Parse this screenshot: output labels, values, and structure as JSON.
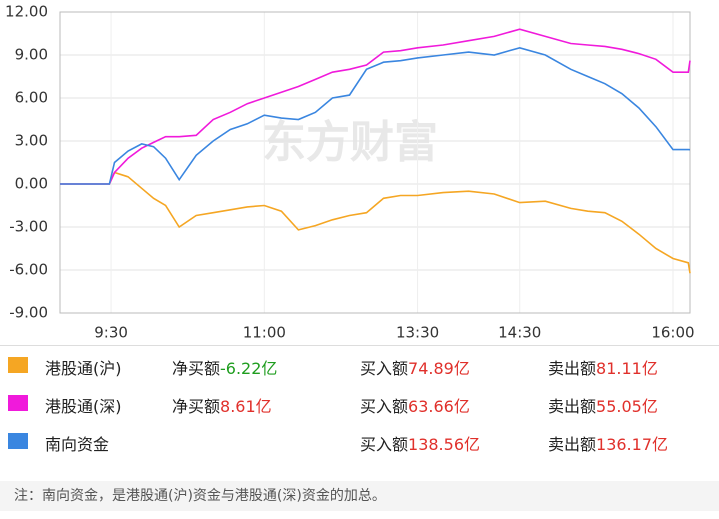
{
  "chart_data": {
    "type": "line",
    "watermark": "东方财富",
    "x": [
      "9:00",
      "9:29",
      "9:32",
      "9:40",
      "9:48",
      "9:55",
      "10:02",
      "10:10",
      "10:20",
      "10:30",
      "10:40",
      "10:50",
      "11:00",
      "11:10",
      "11:20",
      "11:30",
      "11:40",
      "11:50",
      "12:00",
      "13:10",
      "13:20",
      "13:30",
      "13:45",
      "14:00",
      "14:15",
      "14:30",
      "14:45",
      "15:00",
      "15:10",
      "15:20",
      "15:30",
      "15:40",
      "15:50",
      "16:00",
      "16:09",
      "16:10"
    ],
    "xlim": [
      "9:00",
      "16:10"
    ],
    "xticks": [
      "9:30",
      "11:00",
      "13:30",
      "14:30",
      "16:00"
    ],
    "ylim": [
      -9,
      12
    ],
    "yticks": [
      {
        "value": 12,
        "label": "12.00"
      },
      {
        "value": 9,
        "label": "9.00"
      },
      {
        "value": 6,
        "label": "6.00"
      },
      {
        "value": 3,
        "label": "3.00"
      },
      {
        "value": 0,
        "label": "0.00"
      },
      {
        "value": -3,
        "label": "-3.00"
      },
      {
        "value": -6,
        "label": "-6.00"
      },
      {
        "value": -9,
        "label": "-9.00"
      }
    ],
    "grid": true,
    "legend_labels": {
      "net": "净买额",
      "buy": "买入额",
      "sell": "卖出额"
    },
    "series": [
      {
        "name": "港股通(沪)",
        "color": "#f5a623",
        "net_buy": "-6.22亿",
        "buy": "74.89亿",
        "sell": "81.11亿",
        "values": [
          0,
          0,
          0.8,
          0.5,
          -0.3,
          -1.0,
          -1.5,
          -3.0,
          -2.2,
          -2.0,
          -1.8,
          -1.6,
          -1.5,
          -1.9,
          -3.2,
          -2.9,
          -2.5,
          -2.2,
          -2.0,
          -1.0,
          -0.8,
          -0.8,
          -0.6,
          -0.5,
          -0.7,
          -1.3,
          -1.2,
          -1.7,
          -1.9,
          -2.0,
          -2.6,
          -3.5,
          -4.5,
          -5.2,
          -5.5,
          -6.22
        ]
      },
      {
        "name": "港股通(深)",
        "color": "#f01adb",
        "net_buy": "8.61亿",
        "buy": "63.66亿",
        "sell": "55.05亿",
        "values": [
          0,
          0,
          0.8,
          1.8,
          2.5,
          2.9,
          3.3,
          3.3,
          3.4,
          4.5,
          5.0,
          5.6,
          6.0,
          6.4,
          6.8,
          7.3,
          7.8,
          8.0,
          8.3,
          9.2,
          9.3,
          9.5,
          9.7,
          10.0,
          10.3,
          10.8,
          10.3,
          9.8,
          9.7,
          9.6,
          9.4,
          9.1,
          8.7,
          7.8,
          7.8,
          8.61
        ]
      },
      {
        "name": "南向资金",
        "color": "#3a86e0",
        "buy": "138.56亿",
        "sell": "136.17亿",
        "values": [
          0,
          0,
          1.5,
          2.3,
          2.8,
          2.6,
          1.8,
          0.3,
          2.0,
          3.0,
          3.8,
          4.2,
          4.8,
          4.6,
          4.5,
          5.0,
          6.0,
          6.2,
          8.0,
          8.5,
          8.6,
          8.8,
          9.0,
          9.2,
          9.0,
          9.5,
          9.0,
          8.0,
          7.5,
          7.0,
          6.3,
          5.3,
          4.0,
          2.4,
          2.4,
          2.39
        ]
      }
    ],
    "note": "注：南向资金，是港股通(沪)资金与港股通(深)资金的加总。"
  }
}
